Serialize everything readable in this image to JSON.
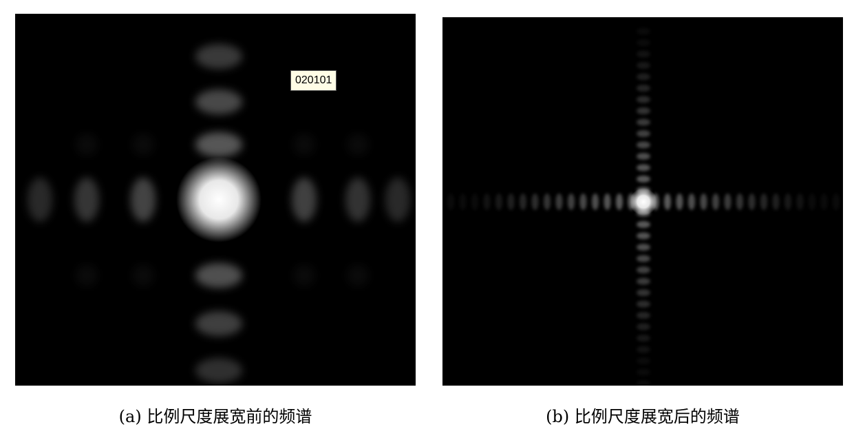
{
  "figure": {
    "panel_a": {
      "tooltip": "020101",
      "caption": "(a) 比例尺度展宽前的频谱"
    },
    "panel_b": {
      "caption": "(b) 比例尺度展宽后的频谱"
    }
  },
  "colors": {
    "background": "#000000",
    "tooltip_bg": "#fffde6"
  }
}
